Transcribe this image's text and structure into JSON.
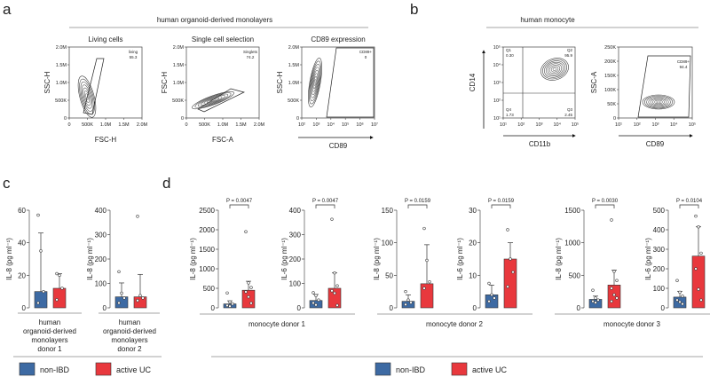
{
  "colors": {
    "nonIBD": "#3d6aa3",
    "activeUC": "#e8383d"
  },
  "panel_a": {
    "letter": "a",
    "header": "human organoid-derived monolayers",
    "plots": [
      {
        "title": "Living cells",
        "xlabel": "FSC-H",
        "ylabel": "SSC-H",
        "gate": "living",
        "gate_value": "55.3",
        "xticks": [
          "0",
          "500K",
          "1.0M",
          "1.5M",
          "2.0M"
        ],
        "yticks": [
          "0",
          "500K",
          "1.0M",
          "1.5M",
          "2.0M"
        ]
      },
      {
        "title": "Single cell selection",
        "xlabel": "FSC-A",
        "ylabel": "FSC-H",
        "gate": "Singlets",
        "gate_value": "74.2",
        "xticks": [
          "0",
          "500K",
          "1.0M",
          "1.5M",
          "2.0M"
        ],
        "yticks": [
          "0",
          "500K",
          "1.0M",
          "1.5M",
          "2.0M"
        ]
      },
      {
        "title": "CD89 expression",
        "xlabel": "CD89",
        "ylabel": "SSC-H",
        "gate": "CD89+",
        "gate_value": "0",
        "xticks": [
          "10²",
          "10³",
          "10⁴",
          "10⁵",
          "10⁶",
          "10⁷"
        ],
        "yticks": [
          "0",
          "500K",
          "1.0M",
          "1.5M",
          "2.0M"
        ]
      }
    ]
  },
  "panel_b": {
    "letter": "b",
    "header": "human monocyte",
    "plots": [
      {
        "xlabel": "CD11b",
        "ylabel": "CD14",
        "xticks": [
          "10¹",
          "10²",
          "10³",
          "10⁴",
          "10⁵"
        ],
        "yticks": [
          "10¹",
          "10²",
          "10³",
          "10⁴",
          "10⁵"
        ],
        "quadrants": [
          {
            "name": "Q1",
            "value": "0.30"
          },
          {
            "name": "Q2",
            "value": "95.9"
          },
          {
            "name": "Q3",
            "value": "2.45"
          },
          {
            "name": "Q4",
            "value": "1.73"
          }
        ]
      },
      {
        "xlabel": "CD89",
        "ylabel": "SSC-A",
        "gate": "CD89+",
        "gate_value": "94.4",
        "xticks": [
          "10¹",
          "10²",
          "10³",
          "10⁴",
          "10⁵"
        ],
        "yticks": [
          "0",
          "50K",
          "100K",
          "150K",
          "200K",
          "250K"
        ]
      }
    ]
  },
  "panel_c": {
    "letter": "c",
    "group_labels": [
      "human organoid-derived monolayers donor 1",
      "human organoid-derived monolayers donor 2"
    ]
  },
  "panel_d": {
    "letter": "d",
    "group_labels": [
      "monocyte donor 1",
      "monocyte donor 2",
      "monocyte donor 3"
    ]
  },
  "legend": {
    "items": [
      "non-IBD",
      "active UC"
    ]
  },
  "chart_data": [
    {
      "type": "bar",
      "panel": "c",
      "ylabel": "IL-8 (pg ml⁻¹)",
      "ylim": [
        0,
        60
      ],
      "yticks": [
        "0",
        "20",
        "40",
        "60"
      ],
      "categories": [
        "non-IBD",
        "active UC"
      ],
      "values": [
        10,
        12
      ],
      "err_upper": [
        46,
        21
      ],
      "points": [
        [
          57,
          35,
          10,
          3
        ],
        [
          21,
          20,
          12,
          5
        ]
      ]
    },
    {
      "type": "bar",
      "panel": "c",
      "ylabel": "IL-8 (pg ml⁻¹)",
      "ylim": [
        0,
        400
      ],
      "yticks": [
        "0",
        "100",
        "200",
        "300",
        "400"
      ],
      "categories": [
        "non-IBD",
        "active UC"
      ],
      "values": [
        45,
        45
      ],
      "err_upper": [
        102,
        137
      ],
      "points": [
        [
          148,
          60,
          40,
          20
        ],
        [
          375,
          50,
          40,
          30
        ]
      ]
    },
    {
      "type": "bar",
      "panel": "d",
      "ylabel": "IL-8 (pg ml⁻¹)",
      "ylim": [
        0,
        2500
      ],
      "yticks": [
        "0",
        "500",
        "1000",
        "1500",
        "2000",
        "2500"
      ],
      "categories": [
        "non-IBD",
        "active UC"
      ],
      "values": [
        100,
        450
      ],
      "err_upper": [
        180,
        680
      ],
      "points": [
        [
          380,
          150,
          100,
          60,
          40
        ],
        [
          1950,
          640,
          520,
          410,
          280,
          120
        ]
      ],
      "pvalue": "P = 0.0047"
    },
    {
      "type": "bar",
      "panel": "d",
      "ylabel": "IL-6 (pg ml⁻¹)",
      "ylim": [
        0,
        400
      ],
      "yticks": [
        "0",
        "100",
        "200",
        "300",
        "400"
      ],
      "categories": [
        "non-IBD",
        "active UC"
      ],
      "values": [
        30,
        80
      ],
      "err_upper": [
        55,
        143
      ],
      "points": [
        [
          62,
          50,
          32,
          20,
          12
        ],
        [
          363,
          143,
          90,
          70,
          60,
          10
        ]
      ],
      "pvalue": "P = 0.0047"
    },
    {
      "type": "bar",
      "panel": "d",
      "ylabel": "IL-8 (pg ml⁻¹)",
      "ylim": [
        0,
        150
      ],
      "yticks": [
        "0",
        "50",
        "100",
        "150"
      ],
      "categories": [
        "non-IBD",
        "active UC"
      ],
      "values": [
        10,
        37
      ],
      "err_upper": [
        20,
        97
      ],
      "points": [
        [
          25,
          12,
          8,
          5
        ],
        [
          122,
          73,
          40,
          30
        ]
      ],
      "pvalue": "P = 0.0159"
    },
    {
      "type": "bar",
      "panel": "d",
      "ylabel": "IL-6 (pg ml⁻¹)",
      "ylim": [
        0,
        30
      ],
      "yticks": [
        "0",
        "10",
        "20",
        "30"
      ],
      "categories": [
        "non-IBD",
        "active UC"
      ],
      "values": [
        4,
        15
      ],
      "err_upper": [
        7,
        20
      ],
      "points": [
        [
          7.5,
          4,
          3,
          2
        ],
        [
          24,
          15,
          11,
          6.5
        ]
      ],
      "pvalue": "P = 0.0159"
    },
    {
      "type": "bar",
      "panel": "d",
      "ylabel": "IL-8 (pg ml⁻¹)",
      "ylim": [
        0,
        1500
      ],
      "yticks": [
        "0",
        "500",
        "1000",
        "1500"
      ],
      "categories": [
        "non-IBD",
        "active UC"
      ],
      "values": [
        130,
        350
      ],
      "err_upper": [
        180,
        580
      ],
      "points": [
        [
          270,
          150,
          120,
          100,
          80
        ],
        [
          1350,
          560,
          420,
          300,
          200,
          150,
          100
        ]
      ],
      "pvalue": "P = 0.0030"
    },
    {
      "type": "bar",
      "panel": "d",
      "ylabel": "IL-6 (pg ml⁻¹)",
      "ylim": [
        0,
        500
      ],
      "yticks": [
        "0",
        "100",
        "200",
        "300",
        "400",
        "500"
      ],
      "categories": [
        "non-IBD",
        "active UC"
      ],
      "values": [
        55,
        265
      ],
      "err_upper": [
        85,
        415
      ],
      "points": [
        [
          140,
          80,
          60,
          40,
          30,
          20
        ],
        [
          470,
          415,
          280,
          200,
          95,
          40
        ]
      ],
      "pvalue": "P = 0.0104"
    }
  ]
}
